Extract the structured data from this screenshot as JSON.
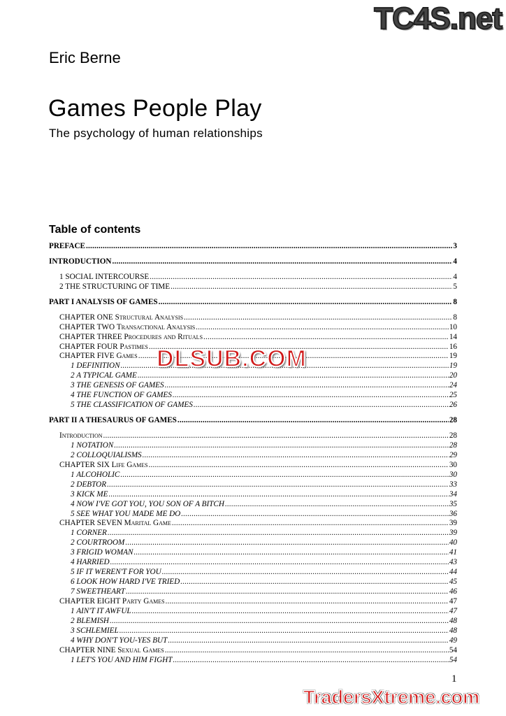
{
  "document": {
    "author": "Eric Berne",
    "title": "Games People Play",
    "subtitle": "The psychology of human relationships",
    "toc_heading": "Table of contents",
    "page_number": "1"
  },
  "toc": [
    {
      "type": "part",
      "label": "PREFACE",
      "sc": "",
      "page": "3"
    },
    {
      "type": "part",
      "label": "INTRODUCTION",
      "sc": "",
      "page": "4"
    },
    {
      "type": "sec gap",
      "label": "1 SOCIAL INTERCOURSE",
      "sc": "",
      "page": "4"
    },
    {
      "type": "sec",
      "label": "2 THE STRUCTURING OF TIME",
      "sc": "",
      "page": "5"
    },
    {
      "type": "part",
      "label": "PART I ANALYSIS OF GAMES",
      "sc": "",
      "page": "8"
    },
    {
      "type": "sec gap",
      "label": "CHAPTER ONE ",
      "sc": "Structural Analysis",
      "page": "8"
    },
    {
      "type": "sec",
      "label": "CHAPTER TWO ",
      "sc": "Transactional Analysis",
      "page": "10"
    },
    {
      "type": "sec",
      "label": "CHAPTER THREE ",
      "sc": "Procedures and Rituals",
      "page": "14"
    },
    {
      "type": "sec",
      "label": "CHAPTER FOUR ",
      "sc": "Pastimes",
      "page": "16"
    },
    {
      "type": "sec",
      "label": "CHAPTER FIVE ",
      "sc": "Games",
      "page": "19"
    },
    {
      "type": "l2",
      "label": "1 DEFINITION",
      "sc": "",
      "page": "19"
    },
    {
      "type": "l2",
      "label": "2 A TYPICAL GAME",
      "sc": "",
      "page": "20"
    },
    {
      "type": "l2",
      "label": "3 THE GENESIS OF GAMES",
      "sc": "",
      "page": "24"
    },
    {
      "type": "l2",
      "label": "4 THE FUNCTION OF GAMES",
      "sc": "",
      "page": "25"
    },
    {
      "type": "l2",
      "label": "5 THE CLASSIFICATION OF GAMES",
      "sc": "",
      "page": "26"
    },
    {
      "type": "part",
      "label": "PART II A THESAURUS OF GAMES",
      "sc": "",
      "page": "28"
    },
    {
      "type": "sec gap",
      "label": "",
      "sc": "Introduction",
      "page": "28"
    },
    {
      "type": "l2",
      "label": "1 NOTATION",
      "sc": "",
      "page": "28"
    },
    {
      "type": "l2",
      "label": "2 COLLOQUIALISMS",
      "sc": "",
      "page": "29"
    },
    {
      "type": "sec",
      "label": "CHAPTER SIX ",
      "sc": "Life Games",
      "page": "30"
    },
    {
      "type": "l2",
      "label": "1 ALCOHOLIC",
      "sc": "",
      "page": "30"
    },
    {
      "type": "l2",
      "label": "2 DEBTOR",
      "sc": "",
      "page": "33"
    },
    {
      "type": "l2",
      "label": "3 KICK ME",
      "sc": "",
      "page": "34"
    },
    {
      "type": "l2",
      "label": "4 NOW I'VE GOT YOU, YOU SON OF A BITCH",
      "sc": "",
      "page": "35"
    },
    {
      "type": "l2",
      "label": "5 SEE WHAT YOU MADE ME DO",
      "sc": "",
      "page": "36"
    },
    {
      "type": "sec",
      "label": "CHAPTER SEVEN ",
      "sc": "Marital Game",
      "page": "39"
    },
    {
      "type": "l2",
      "label": "1 CORNER",
      "sc": "",
      "page": "39"
    },
    {
      "type": "l2",
      "label": "2 COURTROOM",
      "sc": "",
      "page": "40"
    },
    {
      "type": "l2",
      "label": "3 FRIGID WOMAN",
      "sc": "",
      "page": "41"
    },
    {
      "type": "l2",
      "label": "4 HARRIED",
      "sc": "",
      "page": "43"
    },
    {
      "type": "l2",
      "label": "5 IF IT WEREN'T FOR YOU",
      "sc": "",
      "page": "44"
    },
    {
      "type": "l2",
      "label": "6 LOOK HOW HARD I'VE TRIED",
      "sc": "",
      "page": "45"
    },
    {
      "type": "l2",
      "label": "7 SWEETHEART",
      "sc": "",
      "page": "46"
    },
    {
      "type": "sec",
      "label": "CHAPTER EIGHT ",
      "sc": "Party Games",
      "page": "47"
    },
    {
      "type": "l2",
      "label": "1 AIN'T IT AWFUL",
      "sc": "",
      "page": "47"
    },
    {
      "type": "l2",
      "label": "2 BLEMISH",
      "sc": "",
      "page": "48"
    },
    {
      "type": "l2",
      "label": "3 SCHLEMIEL",
      "sc": "",
      "page": "48"
    },
    {
      "type": "l2",
      "label": "4 WHY DON'T YOU-YES BUT",
      "sc": "",
      "page": "49"
    },
    {
      "type": "sec",
      "label": "CHAPTER NINE ",
      "sc": "Sexual Games",
      "page": "54"
    },
    {
      "type": "l2",
      "label": "1 LET'S YOU AND HIM FIGHT",
      "sc": "",
      "page": "54"
    }
  ],
  "watermarks": {
    "top": "TC4S.net",
    "middle": "DLSUB.COM",
    "bottom": "TradersXtreme.com"
  },
  "colors": {
    "watermark_red": "#d01818",
    "watermark_gray": "#444444"
  }
}
